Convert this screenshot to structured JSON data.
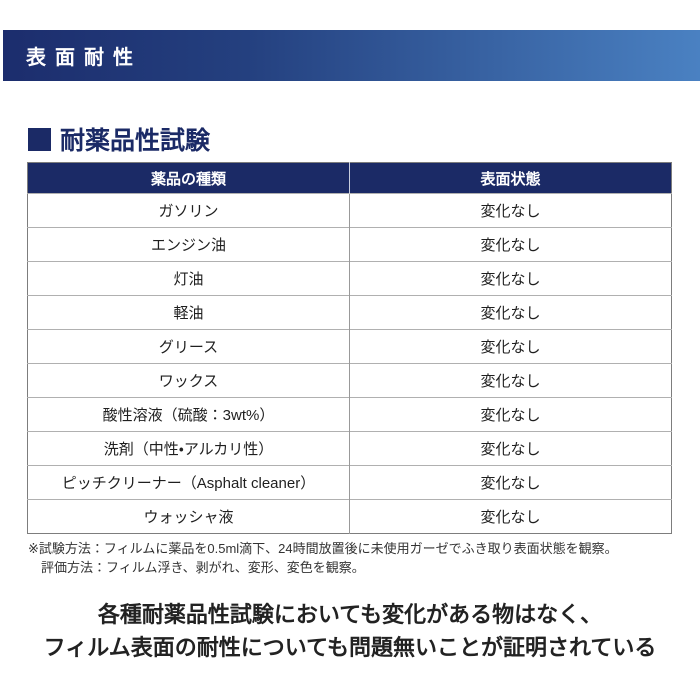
{
  "banner": {
    "title": "表面耐性"
  },
  "section": {
    "title": "耐薬品性試験"
  },
  "table": {
    "columns": {
      "chemical": "薬品の種類",
      "state": "表面状態"
    },
    "rows": [
      {
        "chemical": "ガソリン",
        "state": "変化なし"
      },
      {
        "chemical": "エンジン油",
        "state": "変化なし"
      },
      {
        "chemical": "灯油",
        "state": "変化なし"
      },
      {
        "chemical": "軽油",
        "state": "変化なし"
      },
      {
        "chemical": "グリース",
        "state": "変化なし"
      },
      {
        "chemical": "ワックス",
        "state": "変化なし"
      },
      {
        "chemical": "酸性溶液（硫酸：3wt%）",
        "state": "変化なし"
      },
      {
        "chemical": "洗剤（中性・アルカリ性）",
        "state": "変化なし"
      },
      {
        "chemical": "ピッチクリーナー（Asphalt cleaner）",
        "state": "変化なし"
      },
      {
        "chemical": "ウォッシャ液",
        "state": "変化なし"
      }
    ]
  },
  "notes": {
    "line1": "※試験方法：フィルムに薬品を0.5ml滴下、24時間放置後に未使用ガーゼでふき取り表面状態を観察。",
    "line2": "評価方法：フィルム浮き、剥がれ、変形、変色を観察。"
  },
  "statement": {
    "line1": "各種耐薬品性試験においても変化がある物はなく、",
    "line2": "フィルム表面の耐性についても問題無いことが証明されている"
  },
  "colors": {
    "gradient_start": "#1c2d6d",
    "gradient_end": "#4a81c2",
    "navy": "#1b2a66",
    "body_text": "#1f1f1f"
  }
}
